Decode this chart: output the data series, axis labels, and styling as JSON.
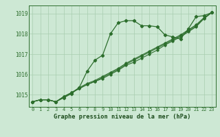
{
  "background_color": "#cde8d4",
  "grid_color": "#a8cdb0",
  "line_color": "#2d6e2d",
  "xlabel": "Graphe pression niveau de la mer (hPa)",
  "xlabel_color": "#1a4a1a",
  "ylim": [
    1014.4,
    1019.4
  ],
  "xlim": [
    -0.5,
    23.5
  ],
  "yticks": [
    1015,
    1016,
    1017,
    1018,
    1019
  ],
  "xticks": [
    0,
    1,
    2,
    3,
    4,
    5,
    6,
    7,
    8,
    9,
    10,
    11,
    12,
    13,
    14,
    15,
    16,
    17,
    18,
    19,
    20,
    21,
    22,
    23
  ],
  "series": [
    [
      1014.65,
      1014.75,
      1014.75,
      1014.65,
      1014.85,
      1015.05,
      1015.35,
      1016.15,
      1016.7,
      1016.95,
      1018.0,
      1018.55,
      1018.65,
      1018.65,
      1018.4,
      1018.4,
      1018.35,
      1017.95,
      1017.85,
      1017.75,
      1018.25,
      1018.85,
      1018.9,
      1019.05
    ],
    [
      1014.65,
      1014.75,
      1014.75,
      1014.65,
      1014.9,
      1015.1,
      1015.3,
      1015.5,
      1015.65,
      1015.8,
      1016.0,
      1016.2,
      1016.45,
      1016.6,
      1016.8,
      1017.0,
      1017.2,
      1017.45,
      1017.65,
      1017.85,
      1018.1,
      1018.35,
      1018.75,
      1019.05
    ],
    [
      1014.65,
      1014.75,
      1014.75,
      1014.65,
      1014.9,
      1015.1,
      1015.3,
      1015.5,
      1015.65,
      1015.85,
      1016.05,
      1016.25,
      1016.5,
      1016.7,
      1016.9,
      1017.1,
      1017.3,
      1017.5,
      1017.7,
      1017.9,
      1018.15,
      1018.4,
      1018.75,
      1019.05
    ],
    [
      1014.65,
      1014.75,
      1014.75,
      1014.65,
      1014.9,
      1015.1,
      1015.35,
      1015.55,
      1015.7,
      1015.9,
      1016.1,
      1016.3,
      1016.55,
      1016.75,
      1016.95,
      1017.15,
      1017.35,
      1017.55,
      1017.75,
      1017.95,
      1018.2,
      1018.45,
      1018.8,
      1019.05
    ]
  ],
  "figsize": [
    3.2,
    2.0
  ],
  "dpi": 100
}
